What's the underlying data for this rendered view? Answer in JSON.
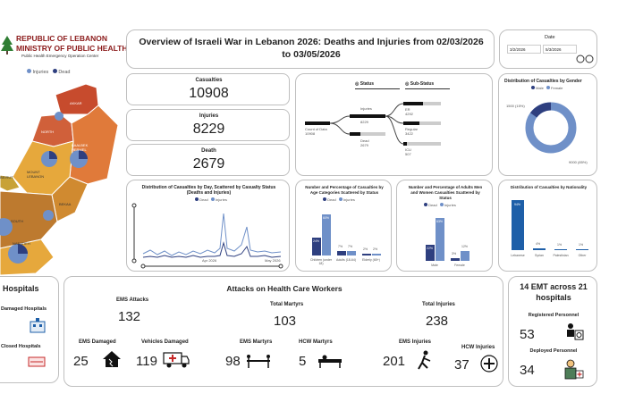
{
  "header": {
    "ministry_line1": "REPUBLIC OF LEBANON",
    "ministry_line2": "MINISTRY OF PUBLIC HEALTH",
    "ministry_line3": "Public Health Emergency Operation Center",
    "title_line1": "Overview of Israeli War in Lebanon 2026: Deaths and Injuries from 02/03/2026",
    "title_line2": "to 03/05/2026",
    "date_label": "Date",
    "date_from": "3/2/2026",
    "date_to": "5/3/2026"
  },
  "map": {
    "legend_injuries": "Injuries",
    "legend_dead": "Dead",
    "regions": [
      "AKKAR",
      "NORTH",
      "BAALBEK HERMEL",
      "MOUNT LEBANON",
      "BEKAA",
      "NABATIEH",
      "SOUTH",
      "BEIRUT"
    ]
  },
  "kpis": [
    {
      "label": "Casualties",
      "value": "10908"
    },
    {
      "label": "Injuries",
      "value": "8229"
    },
    {
      "label": "Death",
      "value": "2679"
    }
  ],
  "tree": {
    "status_label": "Status",
    "substatus_label": "Sub-Status",
    "root_label": "Count of Data",
    "root_value": "10908",
    "injuries_label": "Injuries",
    "injuries_value": "8229",
    "dead_label": "Dead",
    "dead_value": "2679",
    "leaves": [
      {
        "label": "ER",
        "value": "4292"
      },
      {
        "label": "Regular",
        "value": "3422"
      },
      {
        "label": "ICU",
        "value": "507"
      }
    ]
  },
  "donut": {
    "title": "Distribution of Casualties by Gender",
    "legend": [
      "Male",
      "Female"
    ],
    "label_small": "1500 (15%)",
    "label_large": "9000 (85%)"
  },
  "line_chart": {
    "title_line1": "Distribution of Casualties by Day, Scattered by Casualty Status",
    "title_line2": "(Deaths and Injuries)",
    "legend": [
      "Dead",
      "Injuries"
    ],
    "x_labels": [
      "Apr 2026",
      "May 2026"
    ]
  },
  "age_chart": {
    "title_line1": "Number and Percentage of Casualties by",
    "title_line2": "Age Categories Scattered by Status",
    "legend": [
      "Dead",
      "Injuries"
    ],
    "categories": [
      "Children (under 18)",
      "Adults (18-64)",
      "Elderly (65+)"
    ],
    "bar_labels": [
      "24%",
      "60%",
      "7%",
      "7%",
      "2%",
      "2%"
    ]
  },
  "adult_chart": {
    "title_line1": "Number and Percentage of Adults Men",
    "title_line2": "and Women Casualties Scattered by",
    "title_line3": "Status",
    "legend": [
      "Dead",
      "Injuries"
    ],
    "categories": [
      "Male",
      "Female"
    ],
    "bar_labels": [
      "22%",
      "63%",
      "3%",
      "12%"
    ]
  },
  "nationality_chart": {
    "title": "Distribution of Casualties by Nationality",
    "bar_labels": [
      "94%",
      "4%",
      "1%",
      "1%"
    ],
    "categories": [
      "Lebanese",
      "Syrian",
      "Palestinian",
      "Other"
    ]
  },
  "hospitals": {
    "title": "Hospitals",
    "damaged_label": "Damaged Hospitals",
    "closed_label": "Closed Hospitals"
  },
  "attacks": {
    "title": "Attacks on Health Care Workers",
    "ems_attacks_label": "EMS Attacks",
    "ems_attacks_value": "132",
    "total_martyrs_label": "Total Martyrs",
    "total_martyrs_value": "103",
    "total_injuries_label": "Total Injuries",
    "total_injuries_value": "238",
    "ems_damaged_label": "EMS Damaged",
    "ems_damaged_value": "25",
    "vehicles_damaged_label": "Vehicles Damaged",
    "vehicles_damaged_value": "119",
    "ems_martyrs_label": "EMS Martyrs",
    "ems_martyrs_value": "98",
    "hcw_martyrs_label": "HCW Martyrs",
    "hcw_martyrs_value": "5",
    "ems_injuries_label": "EMS Injuries",
    "ems_injuries_value": "201",
    "hcw_injuries_label": "HCW Injuries",
    "hcw_injuries_value": "37"
  },
  "emt": {
    "title_line1": "14 EMT across 21",
    "title_line2": "hospitals",
    "registered_label": "Registered Personnel",
    "registered_value": "53",
    "deployed_label": "Deployed Personnel",
    "deployed_value": "34"
  },
  "colors": {
    "dead": "#2e3f7f",
    "injuries": "#6f90c8",
    "accent_blue": "#1e5fa8",
    "map_red": "#c74b2d",
    "map_orange": "#e07a3a",
    "map_yellow": "#e6a83c"
  }
}
